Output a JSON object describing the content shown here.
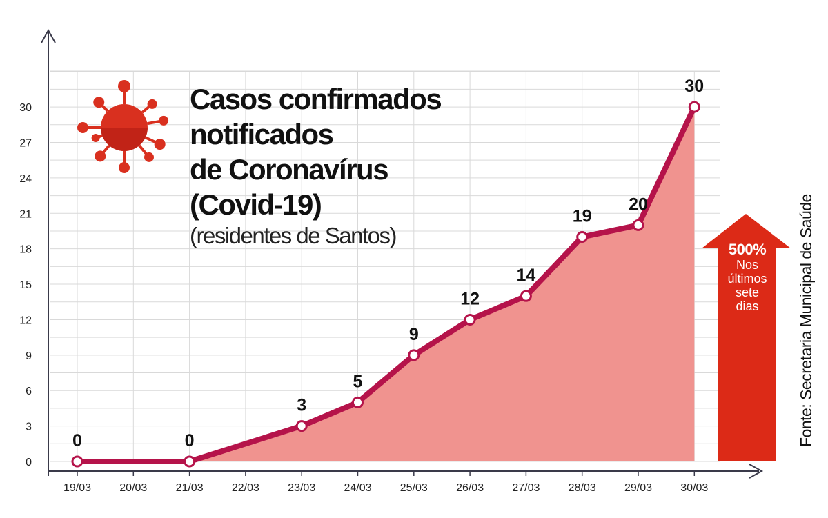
{
  "title": {
    "lines": [
      "Casos confirmados",
      "notificados",
      "de Coronavírus",
      "(Covid-19)"
    ],
    "subtitle": "(residentes de Santos)"
  },
  "arrow": {
    "percent": "500%",
    "desc": [
      "Nos",
      "últimos",
      "sete",
      "dias"
    ]
  },
  "source": "Fonte: Secretaria Municipal de Saúde",
  "icon": "coronavirus-icon",
  "colors": {
    "line": "#b5134a",
    "area": "#f0938f",
    "arrow": "#dc2a17",
    "grid": "#d9d9d9",
    "virus": "#d9301f"
  },
  "chart_data": {
    "type": "area",
    "x": [
      "19/03",
      "20/03",
      "21/03",
      "22/03",
      "23/03",
      "24/03",
      "25/03",
      "26/03",
      "27/03",
      "28/03",
      "29/03",
      "30/03"
    ],
    "yticks": [
      0,
      3,
      6,
      9,
      12,
      15,
      18,
      21,
      24,
      27,
      30
    ],
    "ylim": [
      0,
      33
    ],
    "series": [
      {
        "points": [
          {
            "x": "19/03",
            "y": 0,
            "label": "0"
          },
          {
            "x": "21/03",
            "y": 0,
            "label": "0"
          },
          {
            "x": "23/03",
            "y": 3,
            "label": "3"
          },
          {
            "x": "24/03",
            "y": 5,
            "label": "5"
          },
          {
            "x": "25/03",
            "y": 9,
            "label": "9"
          },
          {
            "x": "26/03",
            "y": 12,
            "label": "12"
          },
          {
            "x": "27/03",
            "y": 14,
            "label": "14"
          },
          {
            "x": "28/03",
            "y": 19,
            "label": "19"
          },
          {
            "x": "29/03",
            "y": 20,
            "label": "20"
          },
          {
            "x": "30/03",
            "y": 30,
            "label": "30"
          }
        ]
      }
    ],
    "grid": true
  }
}
